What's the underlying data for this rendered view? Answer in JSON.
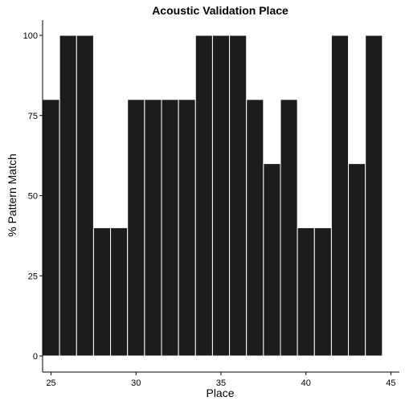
{
  "chart_data": {
    "type": "bar",
    "title": "Acoustic Validation Place",
    "xlabel": "Place",
    "ylabel": "% Pattern Match",
    "x": [
      25,
      26,
      27,
      28,
      29,
      30,
      31,
      32,
      33,
      34,
      35,
      36,
      37,
      38,
      39,
      40,
      41,
      42,
      43,
      44
    ],
    "values": [
      80,
      100,
      100,
      40,
      40,
      80,
      80,
      80,
      80,
      100,
      100,
      100,
      80,
      60,
      80,
      40,
      40,
      100,
      60,
      100
    ],
    "xticks": [
      25,
      30,
      35,
      40,
      45
    ],
    "yticks": [
      0,
      25,
      50,
      75,
      100
    ],
    "xlim": [
      24.5,
      45.5
    ],
    "ylim": [
      0,
      100
    ],
    "grid": false,
    "bar_color": "#1c1c1c",
    "bar_outline": "#ffffff"
  }
}
